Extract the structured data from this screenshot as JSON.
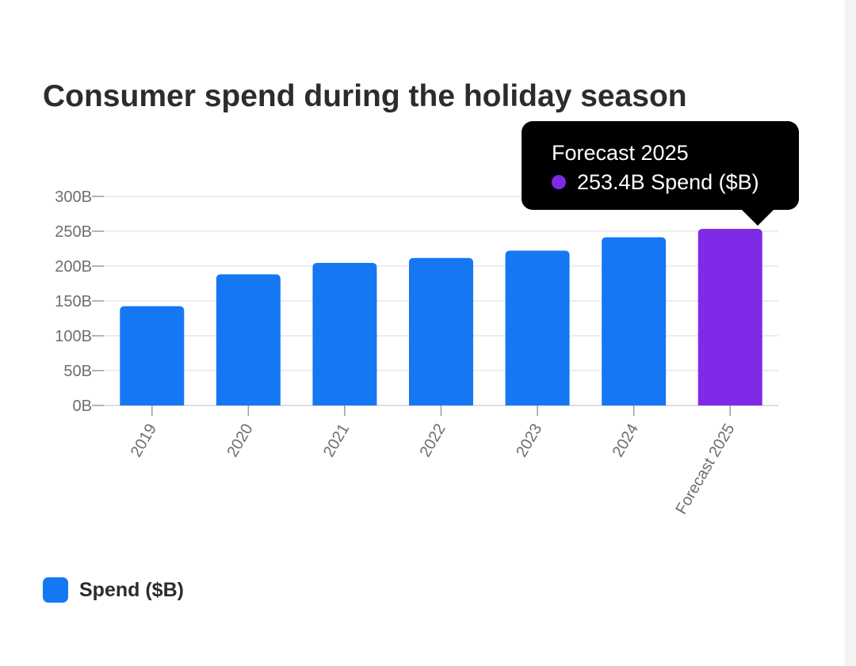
{
  "chart_data": {
    "type": "bar",
    "title": "Consumer spend during the holiday season",
    "categories": [
      "2019",
      "2020",
      "2021",
      "2022",
      "2023",
      "2024",
      "Forecast 2025"
    ],
    "series": [
      {
        "name": "Spend ($B)",
        "values": [
          142.5,
          188.2,
          204.5,
          211.7,
          222.1,
          241.4,
          253.4
        ]
      }
    ],
    "ylim": [
      0,
      300
    ],
    "y_ticks": [
      {
        "value": 0,
        "label": "0B"
      },
      {
        "value": 50,
        "label": "50B"
      },
      {
        "value": 100,
        "label": "100B"
      },
      {
        "value": 150,
        "label": "150B"
      },
      {
        "value": 200,
        "label": "200B"
      },
      {
        "value": 250,
        "label": "250B"
      },
      {
        "value": 300,
        "label": "300B"
      }
    ],
    "xlabel": "",
    "ylabel": "",
    "grid": true,
    "legend_position": "bottom-left",
    "highlighted_index": 6
  },
  "tooltip": {
    "title": "Forecast 2025",
    "value_text": "253.4B Spend ($B)"
  },
  "legend": {
    "label": "Spend ($B)"
  },
  "colors": {
    "bar": "#1677f2",
    "highlight": "#7e2ae6",
    "grid": "#e6e6ee",
    "axis": "#9a9a9a",
    "tick_text": "#6e6e6e"
  }
}
